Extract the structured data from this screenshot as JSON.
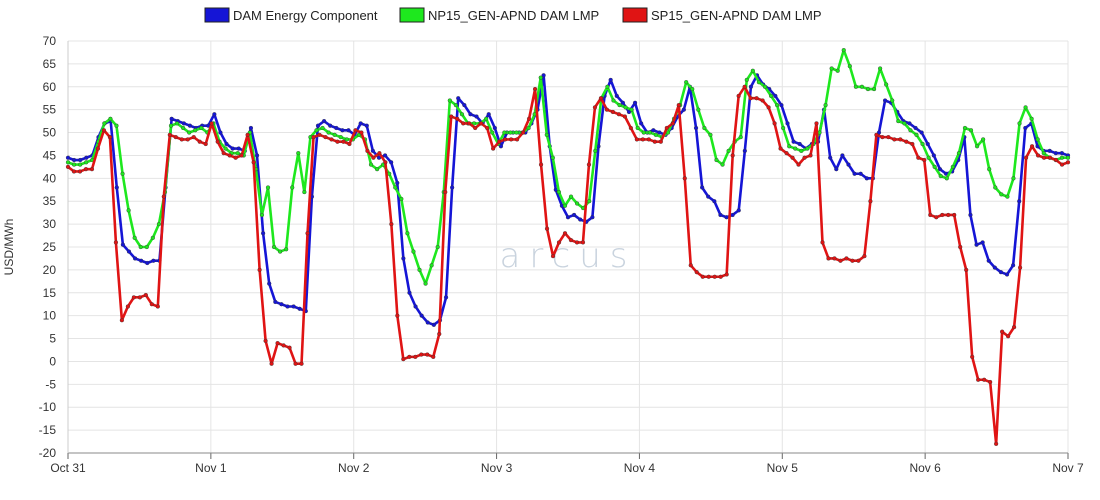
{
  "chart_data": {
    "type": "line",
    "title": "",
    "xlabel": "",
    "ylabel": "USD/MWh",
    "ylim": [
      -20,
      70
    ],
    "yticks": [
      -20,
      -15,
      -10,
      -5,
      0,
      5,
      10,
      15,
      20,
      25,
      30,
      35,
      40,
      45,
      50,
      55,
      60,
      65,
      70
    ],
    "xlim": [
      0,
      168
    ],
    "xticks": [
      {
        "label": "Oct 31",
        "x": 0
      },
      {
        "label": "Nov 1",
        "x": 24
      },
      {
        "label": "Nov 2",
        "x": 48
      },
      {
        "label": "Nov 3",
        "x": 72
      },
      {
        "label": "Nov 4",
        "x": 96
      },
      {
        "label": "Nov 5",
        "x": 120
      },
      {
        "label": "Nov 6",
        "x": 144
      },
      {
        "label": "Nov 7",
        "x": 168
      }
    ],
    "grid": true,
    "legend_position": "top-center",
    "watermark": "arcus",
    "series": [
      {
        "name": "DAM Energy Component",
        "color": "#1515d6",
        "values": [
          44.5,
          44,
          44,
          44.5,
          45,
          49,
          52,
          52.5,
          38,
          25.5,
          24,
          22.5,
          22,
          21.5,
          22,
          22,
          38,
          53,
          52.5,
          52,
          51.5,
          51,
          51.5,
          51.5,
          54,
          50,
          47.5,
          46.5,
          46.5,
          46,
          51,
          45,
          28,
          17,
          13,
          12.5,
          12,
          12,
          11.5,
          11,
          36,
          51.5,
          52.5,
          51.5,
          51,
          50.5,
          50.5,
          49.5,
          52,
          51.5,
          46,
          44.5,
          45,
          43.5,
          39,
          22.5,
          15,
          12,
          10,
          8.5,
          8,
          9,
          14,
          38,
          57.5,
          56,
          54,
          53.5,
          52,
          54,
          51,
          47,
          50,
          50,
          50,
          50,
          52,
          55,
          62.5,
          47,
          37.5,
          34,
          31.5,
          32,
          31,
          30.5,
          31.5,
          47,
          58,
          61.5,
          58,
          56.5,
          54.5,
          56.5,
          52,
          50,
          50.5,
          50,
          49.5,
          51,
          53.5,
          55,
          60,
          51,
          38,
          36,
          35,
          32,
          31.5,
          32,
          33,
          46,
          60,
          62.5,
          60.5,
          59.5,
          58,
          56,
          52,
          48,
          47.5,
          46.5,
          47.5,
          48,
          55,
          44.5,
          42,
          45,
          43,
          41,
          41,
          40,
          40,
          50,
          57,
          56.5,
          54.5,
          52.5,
          52,
          51,
          50,
          47.5,
          45,
          42,
          41,
          41.5,
          44,
          49,
          32,
          25.5,
          26,
          22,
          20.5,
          19.5,
          19,
          21,
          35,
          51,
          52,
          47,
          46,
          46,
          45.5,
          45.5,
          45
        ]
      },
      {
        "name": "NP15_GEN-APND DAM LMP",
        "color": "#1ee81e",
        "values": [
          43.5,
          43,
          43,
          43.5,
          44,
          48,
          52,
          53,
          51.5,
          41,
          33,
          27,
          25,
          25,
          27,
          30,
          37,
          51.5,
          52,
          51,
          50,
          50.5,
          51,
          50,
          52,
          48,
          46.5,
          45.5,
          45.5,
          45,
          50,
          42,
          32,
          38,
          25,
          24,
          24.5,
          38,
          45.5,
          37,
          49,
          50.5,
          51,
          50,
          49.5,
          49,
          48.5,
          48.5,
          49.5,
          48.5,
          43,
          42,
          43,
          41,
          38,
          35.5,
          28,
          24,
          20,
          17,
          21,
          25,
          37,
          57,
          56,
          54,
          52,
          52,
          52,
          53,
          50,
          47.5,
          50,
          50,
          50,
          50,
          51,
          54,
          62,
          49.5,
          44.5,
          37,
          34,
          36,
          34.5,
          33.5,
          35,
          46,
          57.5,
          60,
          57,
          56,
          55.5,
          55,
          51,
          50,
          50,
          49.5,
          49,
          50,
          53,
          56,
          61,
          59.5,
          55,
          51,
          49.5,
          44,
          43,
          46,
          48,
          49,
          61.5,
          63.5,
          61,
          60,
          58,
          56,
          51,
          47,
          46.5,
          46,
          46.5,
          47.5,
          50,
          56,
          64,
          63.5,
          68,
          64.5,
          60,
          60,
          59.5,
          59.5,
          64,
          60.5,
          57,
          52.5,
          52,
          50.5,
          49.5,
          47.5,
          44.5,
          42.5,
          40.5,
          40,
          42.5,
          45.5,
          51,
          50.5,
          47,
          48.5,
          42,
          38,
          36.5,
          36,
          40,
          52,
          55.5,
          53,
          48.5,
          45.5,
          44.5,
          44,
          44.5,
          44.5
        ]
      },
      {
        "name": "SP15_GEN-APND DAM LMP",
        "color": "#e01414",
        "values": [
          42.5,
          41.5,
          41.5,
          42,
          42,
          46.5,
          50.5,
          49,
          26,
          9,
          12,
          14,
          14,
          14.5,
          12.5,
          12,
          36,
          49.5,
          49,
          48.5,
          48.5,
          49,
          48,
          47.5,
          52,
          48,
          45.5,
          45,
          44.5,
          45,
          49.5,
          43.5,
          20,
          4.5,
          -0.5,
          4,
          3.5,
          3,
          -0.5,
          -0.5,
          28,
          49,
          49.5,
          49,
          48.5,
          48,
          48,
          47.5,
          50.5,
          50,
          46,
          44.5,
          45.5,
          43.5,
          30,
          10,
          0.5,
          1,
          1,
          1.5,
          1.5,
          1,
          6,
          37,
          53.5,
          53,
          52,
          52,
          51,
          52,
          51,
          46.5,
          48,
          48.5,
          48.5,
          48.5,
          50,
          53,
          59.5,
          43,
          29,
          23,
          26,
          28,
          26.5,
          26,
          26,
          43,
          55.5,
          57.5,
          55,
          54.5,
          54,
          53.5,
          51,
          48.5,
          48.5,
          48.5,
          48,
          48,
          51,
          52,
          56,
          40,
          21,
          19.5,
          18.5,
          18.5,
          18.5,
          18.5,
          19,
          45,
          58,
          60,
          57.5,
          57.5,
          57,
          55.5,
          52,
          46.5,
          45.5,
          44.5,
          43,
          44.5,
          45,
          52,
          26,
          22.5,
          22.5,
          22,
          22.5,
          22,
          22,
          23,
          35,
          49.5,
          49,
          49,
          48.5,
          48.5,
          48,
          47.5,
          44.5,
          44,
          32,
          31.5,
          32,
          32,
          32,
          25,
          20,
          1,
          -4,
          -4,
          -4.5,
          -18,
          6.5,
          5.5,
          7.5,
          20.5,
          44.5,
          47,
          45,
          44.5,
          44.5,
          44,
          43,
          43.5
        ]
      }
    ]
  }
}
